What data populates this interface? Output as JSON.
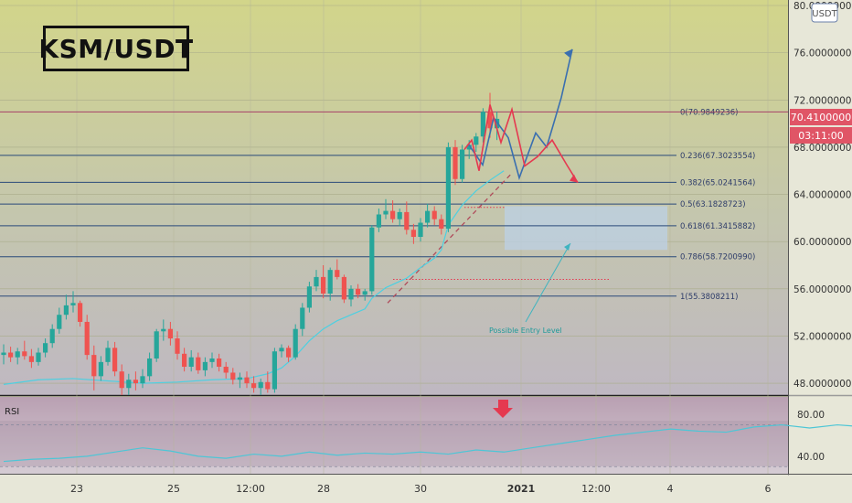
{
  "title": "KSM/USDT",
  "currency_badge": "USDT",
  "last_price": "70.4100000",
  "countdown": "03:11:00",
  "colors": {
    "up": "#26a69a",
    "down": "#ef5350",
    "fib": "#2a4a7a",
    "ma": "#4dd0e1",
    "blue_path": "#3a6fb0",
    "red_path": "#e53950"
  },
  "chart_data": {
    "type": "candlestick",
    "pair": "KSM/USDT",
    "x_tick_labels": [
      "23",
      "25",
      "12:00",
      "28",
      "30",
      "2021",
      "12:00",
      "4",
      "6"
    ],
    "y_tick_labels": [
      "80.0000000",
      "76.0000000",
      "72.0000000",
      "68.0000000",
      "64.0000000",
      "60.0000000",
      "56.0000000",
      "52.0000000",
      "48.0000000"
    ],
    "y_ticks": [
      80,
      76,
      72,
      68,
      64,
      60,
      56,
      52,
      48
    ],
    "ylim": [
      47,
      80
    ],
    "fib_levels": [
      {
        "label": "0(70.9849236)",
        "value": 70.9849236
      },
      {
        "label": "0.236(67.3023554)",
        "value": 67.3023554
      },
      {
        "label": "0.382(65.0241564)",
        "value": 65.0241564
      },
      {
        "label": "0.5(63.1828723)",
        "value": 63.1828723
      },
      {
        "label": "0.618(61.3415882)",
        "value": 61.3415882
      },
      {
        "label": "0.786(58.7200990)",
        "value": 58.720099
      },
      {
        "label": "1(55.3808211)",
        "value": 55.3808211
      }
    ],
    "annotation": "Possible Entry Level",
    "entry_zone": [
      59.3,
      63.0
    ],
    "candles": [
      [
        50.4,
        51.3,
        49.6,
        50.6
      ],
      [
        50.6,
        51.1,
        49.8,
        50.2
      ],
      [
        50.2,
        51.0,
        49.6,
        50.7
      ],
      [
        50.7,
        51.6,
        50.0,
        50.3
      ],
      [
        50.3,
        50.9,
        49.3,
        49.8
      ],
      [
        49.8,
        51.0,
        49.5,
        50.6
      ],
      [
        50.6,
        51.8,
        50.2,
        51.4
      ],
      [
        51.4,
        53.0,
        51.0,
        52.6
      ],
      [
        52.6,
        54.4,
        52.2,
        53.8
      ],
      [
        53.8,
        55.5,
        53.4,
        54.6
      ],
      [
        54.6,
        55.8,
        54.0,
        54.8
      ],
      [
        54.8,
        55.0,
        52.8,
        53.2
      ],
      [
        53.2,
        53.8,
        50.0,
        50.4
      ],
      [
        50.4,
        51.2,
        47.4,
        48.6
      ],
      [
        48.6,
        50.3,
        48.2,
        49.8
      ],
      [
        49.8,
        51.6,
        49.5,
        51.0
      ],
      [
        51.0,
        51.5,
        48.6,
        49.0
      ],
      [
        49.0,
        49.6,
        47.0,
        47.6
      ],
      [
        47.6,
        48.8,
        47.0,
        48.3
      ],
      [
        48.3,
        49.0,
        47.4,
        48.0
      ],
      [
        48.0,
        49.2,
        47.6,
        48.6
      ],
      [
        48.6,
        50.6,
        48.2,
        50.1
      ],
      [
        50.1,
        52.6,
        49.8,
        52.4
      ],
      [
        52.4,
        53.4,
        51.6,
        52.6
      ],
      [
        52.6,
        53.2,
        51.2,
        51.8
      ],
      [
        51.8,
        52.4,
        50.0,
        50.5
      ],
      [
        50.5,
        51.0,
        49.0,
        49.4
      ],
      [
        49.4,
        50.8,
        49.0,
        50.2
      ],
      [
        50.2,
        50.6,
        48.8,
        49.1
      ],
      [
        49.1,
        50.2,
        48.6,
        49.8
      ],
      [
        49.8,
        50.6,
        49.3,
        50.1
      ],
      [
        50.1,
        50.5,
        49.0,
        49.4
      ],
      [
        49.4,
        49.8,
        48.4,
        48.9
      ],
      [
        48.9,
        49.3,
        47.9,
        48.3
      ],
      [
        48.3,
        48.9,
        47.6,
        48.5
      ],
      [
        48.5,
        49.0,
        47.6,
        48.0
      ],
      [
        48.0,
        48.6,
        47.2,
        47.6
      ],
      [
        47.6,
        48.4,
        47.0,
        48.1
      ],
      [
        48.1,
        49.0,
        47.2,
        47.5
      ],
      [
        47.5,
        51.0,
        47.2,
        50.7
      ],
      [
        50.7,
        51.3,
        50.2,
        51.0
      ],
      [
        51.0,
        51.2,
        49.8,
        50.2
      ],
      [
        50.2,
        53.0,
        50.0,
        52.6
      ],
      [
        52.6,
        54.8,
        52.0,
        54.4
      ],
      [
        54.4,
        56.6,
        54.0,
        56.2
      ],
      [
        56.2,
        57.6,
        55.8,
        57.0
      ],
      [
        57.0,
        58.0,
        55.2,
        55.6
      ],
      [
        55.6,
        57.8,
        55.0,
        57.6
      ],
      [
        57.6,
        58.5,
        56.8,
        57.0
      ],
      [
        57.0,
        57.2,
        54.8,
        55.1
      ],
      [
        55.1,
        56.3,
        54.5,
        56.0
      ],
      [
        56.0,
        56.4,
        55.2,
        55.5
      ],
      [
        55.5,
        56.0,
        55.0,
        55.8
      ],
      [
        55.8,
        61.4,
        55.5,
        61.2
      ],
      [
        61.2,
        62.8,
        60.8,
        62.3
      ],
      [
        62.3,
        63.6,
        61.9,
        62.6
      ],
      [
        62.6,
        63.5,
        61.6,
        61.9
      ],
      [
        61.9,
        62.8,
        61.3,
        62.5
      ],
      [
        62.5,
        63.4,
        60.6,
        61.0
      ],
      [
        61.0,
        61.5,
        59.8,
        60.4
      ],
      [
        60.4,
        62.0,
        60.0,
        61.6
      ],
      [
        61.6,
        63.2,
        61.2,
        62.6
      ],
      [
        62.6,
        63.0,
        61.4,
        61.9
      ],
      [
        61.9,
        62.3,
        60.6,
        61.1
      ],
      [
        61.1,
        68.4,
        60.8,
        68.0
      ],
      [
        68.0,
        68.6,
        64.8,
        65.3
      ],
      [
        65.3,
        68.2,
        65.0,
        67.8
      ],
      [
        67.8,
        68.6,
        67.0,
        68.2
      ],
      [
        68.2,
        69.2,
        67.6,
        68.9
      ],
      [
        68.9,
        71.3,
        68.4,
        71.0
      ],
      [
        71.0,
        72.6,
        68.8,
        69.6
      ],
      [
        69.6,
        71.0,
        68.6,
        70.4
      ]
    ],
    "moving_average": [
      [
        0,
        47.9
      ],
      [
        5,
        48.3
      ],
      [
        10,
        48.4
      ],
      [
        15,
        48.2
      ],
      [
        20,
        48.0
      ],
      [
        25,
        48.1
      ],
      [
        30,
        48.3
      ],
      [
        35,
        48.4
      ],
      [
        38,
        48.8
      ],
      [
        40,
        49.3
      ],
      [
        42,
        50.3
      ],
      [
        44,
        51.6
      ],
      [
        46,
        52.6
      ],
      [
        48,
        53.3
      ],
      [
        50,
        53.8
      ],
      [
        52,
        54.3
      ],
      [
        53,
        55.2
      ],
      [
        55,
        56.1
      ],
      [
        58,
        56.9
      ],
      [
        60,
        57.8
      ],
      [
        62,
        58.6
      ],
      [
        63,
        59.3
      ],
      [
        64,
        61.4
      ],
      [
        66,
        63.1
      ],
      [
        68,
        64.3
      ],
      [
        70,
        65.2
      ],
      [
        72,
        66.0
      ]
    ],
    "rsi": {
      "label": "RSI",
      "tick_labels": [
        "80.00",
        "40.00"
      ],
      "ticks": [
        80,
        40
      ],
      "ylim": [
        25,
        95
      ],
      "upper_band": 70,
      "lower_band": 30,
      "values": [
        [
          0,
          35
        ],
        [
          2,
          37
        ],
        [
          4,
          38
        ],
        [
          6,
          40
        ],
        [
          8,
          44
        ],
        [
          10,
          48
        ],
        [
          12,
          45
        ],
        [
          14,
          40
        ],
        [
          16,
          38
        ],
        [
          18,
          42
        ],
        [
          20,
          40
        ],
        [
          22,
          44
        ],
        [
          24,
          41
        ],
        [
          26,
          43
        ],
        [
          28,
          42
        ],
        [
          30,
          44
        ],
        [
          32,
          42
        ],
        [
          34,
          46
        ],
        [
          36,
          44
        ],
        [
          38,
          48
        ],
        [
          40,
          52
        ],
        [
          42,
          56
        ],
        [
          44,
          60
        ],
        [
          46,
          63
        ],
        [
          48,
          66
        ],
        [
          50,
          64
        ],
        [
          52,
          63
        ],
        [
          54,
          68
        ],
        [
          56,
          70
        ],
        [
          58,
          67
        ],
        [
          60,
          70
        ],
        [
          62,
          68
        ],
        [
          64,
          71
        ],
        [
          66,
          70
        ],
        [
          68,
          71
        ],
        [
          70,
          73
        ],
        [
          72,
          75
        ]
      ]
    }
  }
}
